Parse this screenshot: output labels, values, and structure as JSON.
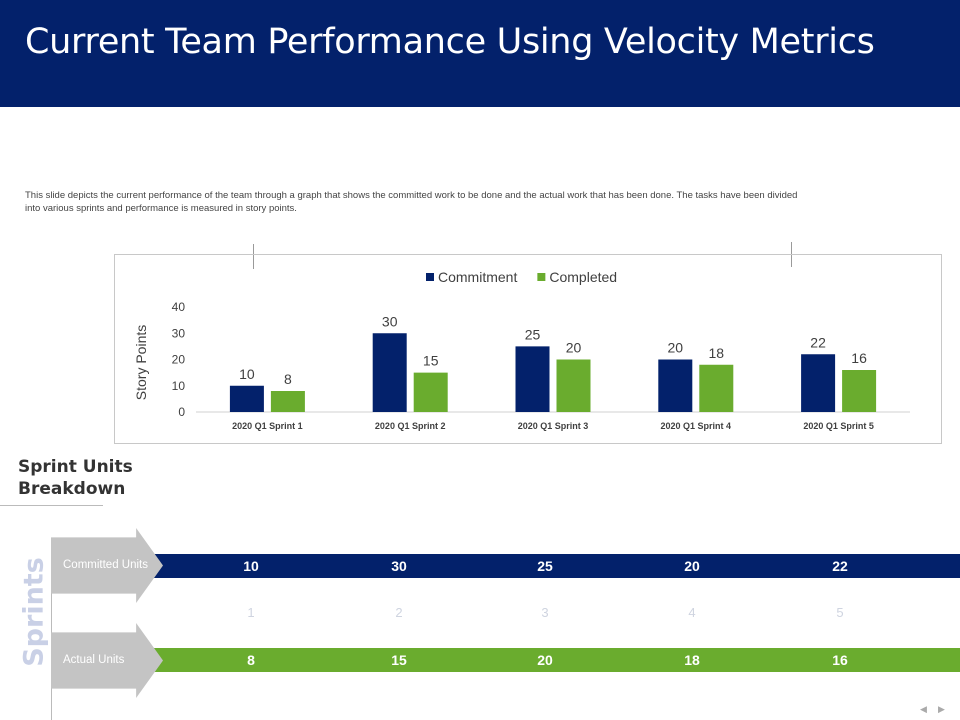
{
  "slide": {
    "title": "Current Team Performance Using Velocity Metrics",
    "description": "This slide depicts the current performance of the team through a graph that shows the committed work to be done and the actual work that has been done. The tasks have been divided into various sprints and performance is measured in story points."
  },
  "chart_data": {
    "type": "bar",
    "categories": [
      "2020 Q1  Sprint 1",
      "2020 Q1  Sprint 2",
      "2020 Q1  Sprint 3",
      "2020 Q1  Sprint 4",
      "2020 Q1  Sprint 5"
    ],
    "series": [
      {
        "name": "Commitment",
        "values": [
          10,
          30,
          25,
          20,
          22
        ],
        "color": "#03216b"
      },
      {
        "name": "Completed",
        "values": [
          8,
          15,
          20,
          18,
          16
        ],
        "color": "#6aac2e"
      }
    ],
    "ylabel": "Story Points",
    "ylim": [
      0,
      40
    ],
    "yticks": [
      0,
      10,
      20,
      30,
      40
    ],
    "legend": "top-center",
    "data_labels": true,
    "grid": false
  },
  "breakdown": {
    "heading_line1": "Sprint Units",
    "heading_line2": "Breakdown",
    "side_label": "Sprints",
    "committed_label": "Committed Units",
    "actual_label": "Actual Units",
    "committed": [
      "10",
      "30",
      "25",
      "20",
      "22"
    ],
    "indices": [
      "1",
      "2",
      "3",
      "4",
      "5"
    ],
    "actual": [
      "8",
      "15",
      "20",
      "18",
      "16"
    ]
  },
  "nav": {
    "prev": "◀",
    "next": "▶"
  }
}
